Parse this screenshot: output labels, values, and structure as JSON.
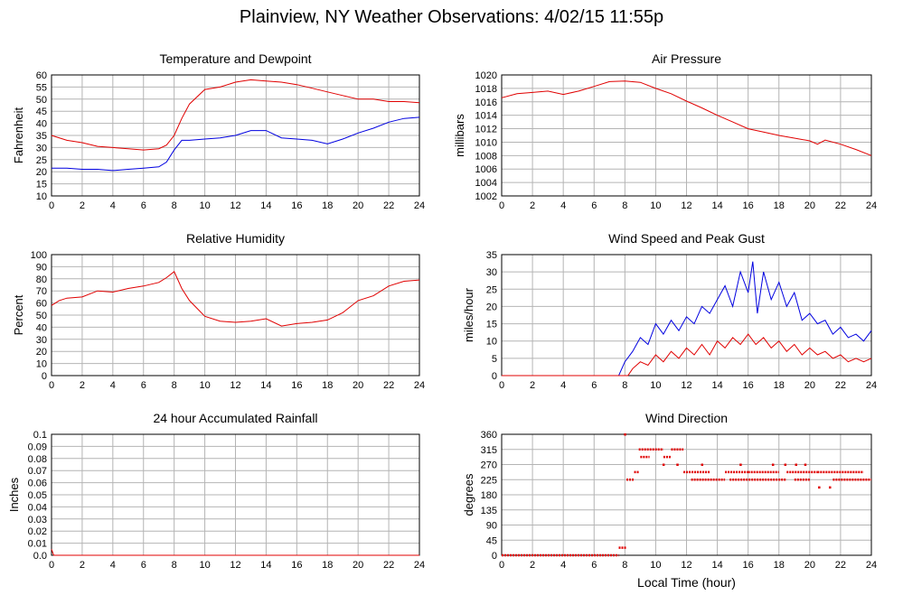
{
  "page": {
    "title": "Plainview, NY Weather Observations: 4/02/15 11:55p"
  },
  "x_axis_label": "Local Time (hour)",
  "chart_data": [
    {
      "id": "temp",
      "type": "line",
      "title": "Temperature and Dewpoint",
      "ylabel": "Fahrenheit",
      "xlabel": "",
      "xlim": [
        0,
        24
      ],
      "ylim": [
        10,
        60
      ],
      "xticks": [
        0,
        2,
        4,
        6,
        8,
        10,
        12,
        14,
        16,
        18,
        20,
        22,
        24
      ],
      "yticks": [
        10,
        15,
        20,
        25,
        30,
        35,
        40,
        45,
        50,
        55,
        60
      ],
      "grid": true,
      "series": [
        {
          "color": "#e00000",
          "x": [
            0,
            1,
            2,
            3,
            4,
            5,
            6,
            7,
            7.5,
            8,
            8.5,
            9,
            10,
            11,
            12,
            13,
            14,
            15,
            16,
            17,
            18,
            19,
            20,
            21,
            22,
            23,
            24
          ],
          "y": [
            35,
            33,
            32,
            30.5,
            30,
            29.5,
            29,
            29.5,
            31,
            35,
            42,
            48,
            54,
            55,
            57,
            58,
            57.5,
            57,
            56,
            54.5,
            53,
            51.5,
            50,
            50,
            49,
            49,
            48.5
          ]
        },
        {
          "color": "#0000e0",
          "x": [
            0,
            1,
            2,
            3,
            4,
            5,
            6,
            7,
            7.5,
            8,
            8.5,
            9,
            10,
            11,
            12,
            13,
            14,
            15,
            16,
            17,
            18,
            19,
            20,
            21,
            22,
            23,
            24
          ],
          "y": [
            21.5,
            21.5,
            21,
            21,
            20.5,
            21,
            21.5,
            22,
            24,
            29,
            33,
            33,
            33.5,
            34,
            35,
            37,
            37,
            34,
            33.5,
            33,
            31.5,
            33.5,
            36,
            38,
            40.5,
            42,
            42.5
          ]
        }
      ]
    },
    {
      "id": "pressure",
      "type": "line",
      "title": "Air Pressure",
      "ylabel": "millibars",
      "xlabel": "",
      "xlim": [
        0,
        24
      ],
      "ylim": [
        1002,
        1020
      ],
      "xticks": [
        0,
        2,
        4,
        6,
        8,
        10,
        12,
        14,
        16,
        18,
        20,
        22,
        24
      ],
      "yticks": [
        1002,
        1004,
        1006,
        1008,
        1010,
        1012,
        1014,
        1016,
        1018,
        1020
      ],
      "grid": true,
      "series": [
        {
          "color": "#e00000",
          "x": [
            0,
            1,
            2,
            3,
            4,
            5,
            6,
            7,
            8,
            9,
            10,
            11,
            12,
            13,
            14,
            15,
            16,
            17,
            18,
            19,
            20,
            20.5,
            21,
            22,
            23,
            24
          ],
          "y": [
            1016.6,
            1017.2,
            1017.4,
            1017.6,
            1017.1,
            1017.6,
            1018.3,
            1019,
            1019.1,
            1018.9,
            1018,
            1017.2,
            1016.1,
            1015.1,
            1014,
            1013,
            1012,
            1011.5,
            1011,
            1010.6,
            1010.2,
            1009.7,
            1010.3,
            1009.7,
            1008.9,
            1008
          ]
        }
      ]
    },
    {
      "id": "humidity",
      "type": "line",
      "title": "Relative Humidity",
      "ylabel": "Percent",
      "xlabel": "",
      "xlim": [
        0,
        24
      ],
      "ylim": [
        0,
        100
      ],
      "xticks": [
        0,
        2,
        4,
        6,
        8,
        10,
        12,
        14,
        16,
        18,
        20,
        22,
        24
      ],
      "yticks": [
        0,
        10,
        20,
        30,
        40,
        50,
        60,
        70,
        80,
        90,
        100
      ],
      "grid": true,
      "series": [
        {
          "color": "#e00000",
          "x": [
            0,
            0.5,
            1,
            2,
            3,
            4,
            5,
            6,
            7,
            7.5,
            8,
            8.5,
            9,
            10,
            11,
            12,
            13,
            14,
            15,
            16,
            17,
            18,
            19,
            20,
            21,
            22,
            23,
            24
          ],
          "y": [
            58,
            62,
            64,
            65,
            70,
            69,
            72,
            74,
            77,
            81,
            86,
            72,
            62,
            49,
            45,
            44,
            45,
            47,
            41,
            43,
            44,
            46,
            52,
            62,
            66,
            74,
            78,
            79
          ]
        }
      ]
    },
    {
      "id": "wind",
      "type": "line",
      "title": "Wind Speed and Peak Gust",
      "ylabel": "miles/hour",
      "xlabel": "",
      "xlim": [
        0,
        24
      ],
      "ylim": [
        0,
        35
      ],
      "xticks": [
        0,
        2,
        4,
        6,
        8,
        10,
        12,
        14,
        16,
        18,
        20,
        22,
        24
      ],
      "yticks": [
        0,
        5,
        10,
        15,
        20,
        25,
        30,
        35
      ],
      "grid": true,
      "series": [
        {
          "color": "#0000e0",
          "x": [
            0,
            7.6,
            8,
            8.5,
            9,
            9.5,
            10,
            10.5,
            11,
            11.5,
            12,
            12.5,
            13,
            13.5,
            14,
            14.5,
            15,
            15.5,
            16,
            16.3,
            16.6,
            17,
            17.5,
            18,
            18.5,
            19,
            19.5,
            20,
            20.5,
            21,
            21.5,
            22,
            22.5,
            23,
            23.5,
            24
          ],
          "y": [
            0,
            0,
            4,
            7,
            11,
            9,
            15,
            12,
            16,
            13,
            17,
            15,
            20,
            18,
            22,
            26,
            20,
            30,
            24,
            33,
            18,
            30,
            22,
            27,
            20,
            24,
            16,
            18,
            15,
            16,
            12,
            14,
            11,
            12,
            10,
            13
          ]
        },
        {
          "color": "#e00000",
          "x": [
            0,
            8.2,
            8.5,
            9,
            9.5,
            10,
            10.5,
            11,
            11.5,
            12,
            12.5,
            13,
            13.5,
            14,
            14.5,
            15,
            15.5,
            16,
            16.5,
            17,
            17.5,
            18,
            18.5,
            19,
            19.5,
            20,
            20.5,
            21,
            21.5,
            22,
            22.5,
            23,
            23.5,
            24
          ],
          "y": [
            0,
            0,
            2,
            4,
            3,
            6,
            4,
            7,
            5,
            8,
            6,
            9,
            6,
            10,
            8,
            11,
            9,
            12,
            9,
            11,
            8,
            10,
            7,
            9,
            6,
            8,
            6,
            7,
            5,
            6,
            4,
            5,
            4,
            5
          ]
        }
      ]
    },
    {
      "id": "rain",
      "type": "line",
      "title": "24 hour Accumulated Rainfall",
      "ylabel": "Inches",
      "xlabel": "",
      "xlim": [
        0,
        24
      ],
      "ylim": [
        0,
        0.1
      ],
      "xticks": [
        0,
        2,
        4,
        6,
        8,
        10,
        12,
        14,
        16,
        18,
        20,
        22,
        24
      ],
      "yticks": [
        "0.0",
        "0.01",
        "0.02",
        "0.03",
        "0.04",
        "0.05",
        "0.06",
        "0.07",
        "0.08",
        "0.09",
        "0.1"
      ],
      "grid": true,
      "series": [
        {
          "color": "#e00000",
          "x": [
            0,
            0.15,
            24
          ],
          "y": [
            0.005,
            0,
            0
          ]
        }
      ]
    },
    {
      "id": "direction",
      "type": "scatter",
      "title": "Wind Direction",
      "ylabel": "degrees",
      "xlabel": "Local Time (hour)",
      "xlim": [
        0,
        24
      ],
      "ylim": [
        0,
        360
      ],
      "xticks": [
        0,
        2,
        4,
        6,
        8,
        10,
        12,
        14,
        16,
        18,
        20,
        22,
        24
      ],
      "yticks": [
        0,
        45,
        90,
        135,
        180,
        225,
        270,
        315,
        360
      ],
      "grid": true,
      "series": [
        {
          "color": "#e00000",
          "segments": [
            {
              "x0": 0,
              "x1": 7.6,
              "y": 0
            },
            {
              "x0": 7.6,
              "x1": 8.1,
              "y": 22.5
            },
            {
              "x0": 8.1,
              "x1": 8.6,
              "y": 225
            },
            {
              "x0": 8.6,
              "x1": 8.9,
              "y": 247.5
            },
            {
              "x0": 8.9,
              "x1": 10.5,
              "y": 315
            },
            {
              "x0": 9.0,
              "x1": 9.6,
              "y": 292.5
            },
            {
              "x0": 10.5,
              "x1": 11.0,
              "y": 292.5
            },
            {
              "x0": 11.0,
              "x1": 11.8,
              "y": 315
            },
            {
              "x0": 11.8,
              "x1": 13.5,
              "y": 247.5
            },
            {
              "x0": 12.3,
              "x1": 14.5,
              "y": 225
            },
            {
              "x0": 14.5,
              "x1": 16.0,
              "y": 247.5
            },
            {
              "x0": 14.8,
              "x1": 18.5,
              "y": 225
            },
            {
              "x0": 16.0,
              "x1": 18.0,
              "y": 247.5
            },
            {
              "x0": 18.5,
              "x1": 20.5,
              "y": 247.5
            },
            {
              "x0": 19.0,
              "x1": 20.0,
              "y": 225
            },
            {
              "x0": 20.5,
              "x1": 23.5,
              "y": 247.5
            },
            {
              "x0": 21.5,
              "x1": 24,
              "y": 225
            }
          ],
          "points": [
            {
              "x": 8.0,
              "y": 360
            },
            {
              "x": 10.5,
              "y": 270
            },
            {
              "x": 11.4,
              "y": 270
            },
            {
              "x": 17.6,
              "y": 270
            },
            {
              "x": 18.4,
              "y": 270
            },
            {
              "x": 19.1,
              "y": 270
            },
            {
              "x": 19.7,
              "y": 270
            },
            {
              "x": 20.6,
              "y": 202.5
            },
            {
              "x": 21.3,
              "y": 202.5
            },
            {
              "x": 13.0,
              "y": 270
            },
            {
              "x": 15.5,
              "y": 270
            }
          ]
        }
      ]
    }
  ]
}
